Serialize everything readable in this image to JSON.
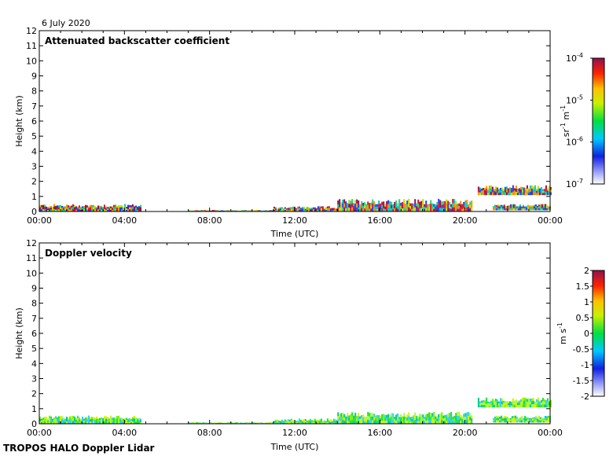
{
  "date_label": "6 July 2020",
  "footer_label": "TROPOS HALO Doppler Lidar",
  "chart_data": [
    {
      "type": "heatmap",
      "title": "Attenuated backscatter coefficient",
      "xlabel": "Time (UTC)",
      "ylabel": "Height (km)",
      "x_ticks": [
        "00:00",
        "04:00",
        "08:00",
        "12:00",
        "16:00",
        "20:00",
        "00:00"
      ],
      "xlim_hours": [
        0,
        24
      ],
      "ylim": [
        0,
        12
      ],
      "y_ticks": [
        0,
        1,
        2,
        3,
        4,
        5,
        6,
        7,
        8,
        9,
        10,
        11,
        12
      ],
      "colorbar": {
        "scale": "log",
        "range": [
          1e-07,
          0.0001
        ],
        "tick_labels": [
          "10",
          "10",
          "10",
          "10"
        ],
        "tick_exponents": [
          "-4",
          "-5",
          "-6",
          "-7"
        ],
        "unit_base": [
          "sr",
          "m"
        ],
        "unit_exponents": [
          "-1",
          "-1"
        ]
      },
      "features": [
        {
          "t_start": 0.0,
          "t_end": 4.8,
          "h_bottom": 0.0,
          "h_top": 0.5
        },
        {
          "t_start": 7.0,
          "t_end": 11.0,
          "h_bottom": 0.0,
          "h_top": 0.1
        },
        {
          "t_start": 11.0,
          "t_end": 14.0,
          "h_bottom": 0.0,
          "h_top": 0.35
        },
        {
          "t_start": 14.0,
          "t_end": 20.3,
          "h_bottom": 0.0,
          "h_top": 0.85
        },
        {
          "t_start": 20.6,
          "t_end": 24.0,
          "h_bottom": 1.1,
          "h_top": 1.75
        },
        {
          "t_start": 21.3,
          "t_end": 24.0,
          "h_bottom": 0.1,
          "h_top": 0.5
        }
      ]
    },
    {
      "type": "heatmap",
      "title": "Doppler velocity",
      "xlabel": "Time (UTC)",
      "ylabel": "Height (km)",
      "x_ticks": [
        "00:00",
        "04:00",
        "08:00",
        "12:00",
        "16:00",
        "20:00",
        "00:00"
      ],
      "xlim_hours": [
        0,
        24
      ],
      "ylim": [
        0,
        12
      ],
      "y_ticks": [
        0,
        1,
        2,
        3,
        4,
        5,
        6,
        7,
        8,
        9,
        10,
        11,
        12
      ],
      "colorbar": {
        "scale": "linear",
        "range": [
          -2,
          2
        ],
        "tick_labels": [
          "2",
          "1.5",
          "1",
          "0.5",
          "0",
          "-0.5",
          "-1",
          "-1.5",
          "-2"
        ],
        "unit_base": [
          "m",
          "s"
        ],
        "unit_exponents": [
          "-1"
        ]
      },
      "features": [
        {
          "t_start": 0.0,
          "t_end": 4.8,
          "h_bottom": 0.0,
          "h_top": 0.55
        },
        {
          "t_start": 7.0,
          "t_end": 11.0,
          "h_bottom": 0.0,
          "h_top": 0.1
        },
        {
          "t_start": 11.0,
          "t_end": 14.0,
          "h_bottom": 0.0,
          "h_top": 0.35
        },
        {
          "t_start": 14.0,
          "t_end": 20.3,
          "h_bottom": 0.0,
          "h_top": 0.8
        },
        {
          "t_start": 20.6,
          "t_end": 24.0,
          "h_bottom": 1.1,
          "h_top": 1.75
        },
        {
          "t_start": 21.3,
          "t_end": 24.0,
          "h_bottom": 0.1,
          "h_top": 0.55
        }
      ]
    }
  ]
}
